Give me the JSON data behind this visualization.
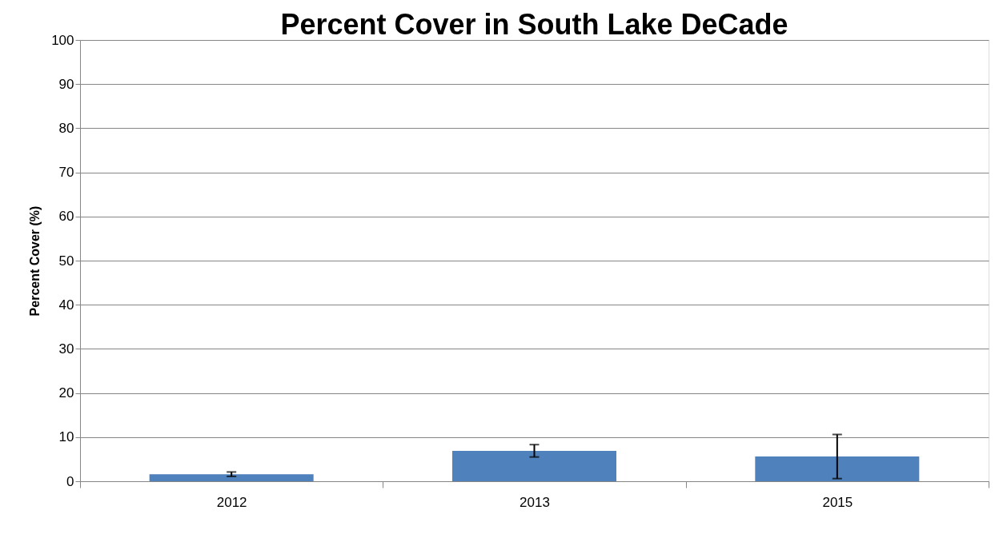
{
  "chart_data": {
    "type": "bar",
    "title": "Percent Cover in South Lake DeCade",
    "ylabel": "Percent Cover (%)",
    "categories": [
      "2012",
      "2013",
      "2015"
    ],
    "values": [
      1.6,
      6.9,
      5.6
    ],
    "errors": [
      0.5,
      1.4,
      5.0
    ],
    "color": "#4f81bd",
    "ylim": [
      0,
      100
    ],
    "yticks": [
      0,
      10,
      20,
      30,
      40,
      50,
      60,
      70,
      80,
      90,
      100
    ],
    "grid": "y"
  }
}
